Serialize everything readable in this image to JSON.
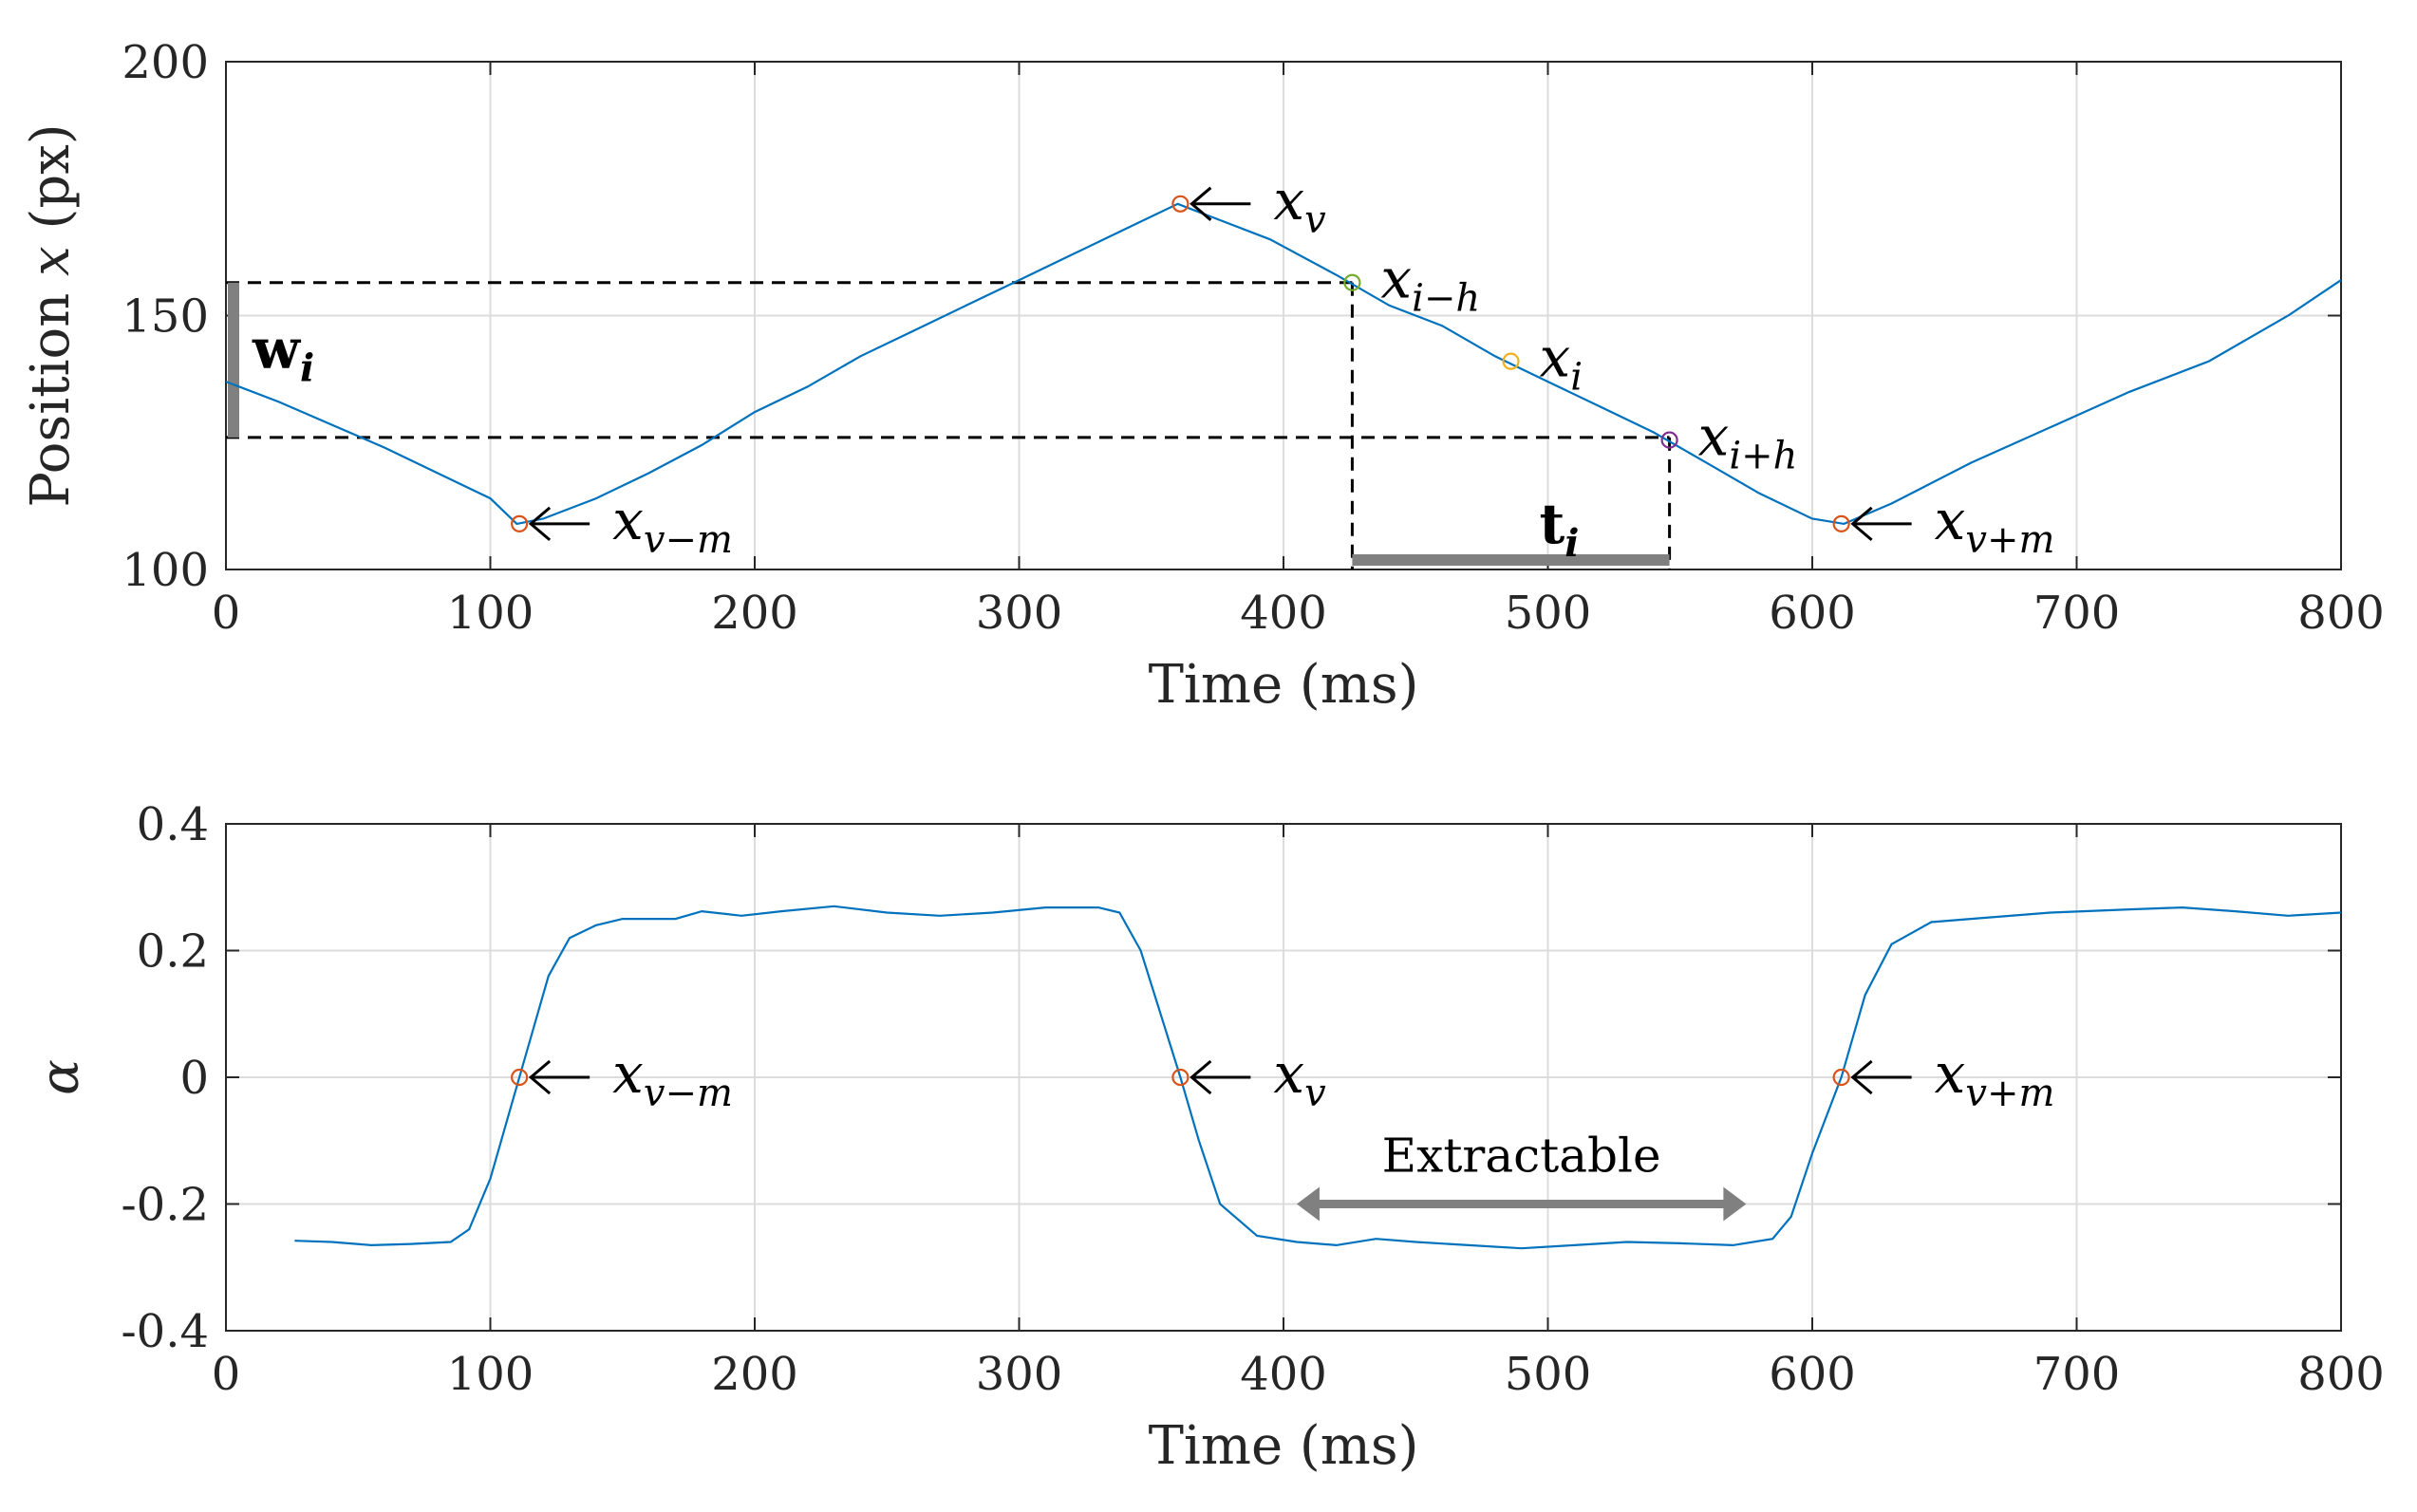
{
  "chart_data": [
    {
      "type": "line",
      "title": "",
      "xlabel": "Time (ms)",
      "ylabel_prefix": "Position ",
      "ylabel_var": "x",
      "ylabel_suffix": " (px)",
      "xlim": [
        0,
        800
      ],
      "ylim": [
        100,
        200
      ],
      "xticks": [
        "0",
        "100",
        "200",
        "300",
        "400",
        "500",
        "600",
        "700",
        "800"
      ],
      "yticks": [
        "100",
        "150",
        "200"
      ],
      "grid": true,
      "series": [
        {
          "name": "position",
          "color": "#0072BD",
          "points": [
            [
              0,
              137
            ],
            [
              20,
              133
            ],
            [
              40,
              128.5
            ],
            [
              60,
              124
            ],
            [
              80,
              119
            ],
            [
              100,
              114
            ],
            [
              110,
              109
            ],
            [
              120,
              110
            ],
            [
              140,
              114
            ],
            [
              160,
              119
            ],
            [
              180,
              124.5
            ],
            [
              200,
              131
            ],
            [
              220,
              136
            ],
            [
              240,
              142
            ],
            [
              260,
              147
            ],
            [
              280,
              152
            ],
            [
              300,
              157
            ],
            [
              320,
              162
            ],
            [
              340,
              167
            ],
            [
              360,
              172
            ],
            [
              375,
              169
            ],
            [
              395,
              165
            ],
            [
              420,
              158
            ],
            [
              440,
              152
            ],
            [
              460,
              148
            ],
            [
              480,
              142
            ],
            [
              500,
              137
            ],
            [
              520,
              132
            ],
            [
              540,
              127
            ],
            [
              560,
              121
            ],
            [
              580,
              115
            ],
            [
              600,
              110
            ],
            [
              612,
              109
            ],
            [
              630,
              113
            ],
            [
              660,
              121
            ],
            [
              690,
              128
            ],
            [
              720,
              135
            ],
            [
              750,
              141
            ],
            [
              780,
              150
            ],
            [
              800,
              157
            ]
          ]
        }
      ],
      "markers": [
        {
          "id": "xv-m",
          "x": 111,
          "y": 109,
          "color": "#D95319",
          "label": "x",
          "sub": "v−m",
          "arrow": true
        },
        {
          "id": "xv",
          "x": 361,
          "y": 172,
          "color": "#D95319",
          "label": "x",
          "sub": "v",
          "arrow": true
        },
        {
          "id": "xi-h",
          "x": 426,
          "y": 156.5,
          "color": "#77AC30",
          "label": "x",
          "sub": "i−h",
          "arrow": false
        },
        {
          "id": "xi",
          "x": 486,
          "y": 141,
          "color": "#EDB120",
          "label": "x",
          "sub": "i",
          "arrow": false
        },
        {
          "id": "xi+h",
          "x": 546,
          "y": 125.5,
          "color": "#7E2F8E",
          "label": "x",
          "sub": "i+h",
          "arrow": false
        },
        {
          "id": "xv+m",
          "x": 611,
          "y": 109,
          "color": "#D95319",
          "label": "x",
          "sub": "v+m",
          "arrow": true
        }
      ],
      "annotations": {
        "w_label": "w",
        "w_sub": "i",
        "w_range": [
          126,
          156.5
        ],
        "t_label": "t",
        "t_sub": "i",
        "t_range": [
          426,
          546
        ]
      }
    },
    {
      "type": "line",
      "title": "",
      "xlabel": "Time (ms)",
      "ylabel": "α",
      "xlim": [
        0,
        800
      ],
      "ylim": [
        -0.4,
        0.4
      ],
      "xticks": [
        "0",
        "100",
        "200",
        "300",
        "400",
        "500",
        "600",
        "700",
        "800"
      ],
      "yticks": [
        "-0.4",
        "-0.2",
        "0",
        "0.2",
        "0.4"
      ],
      "grid": true,
      "series": [
        {
          "name": "alpha",
          "color": "#0072BD",
          "points": [
            [
              26,
              -0.258
            ],
            [
              40,
              -0.26
            ],
            [
              55,
              -0.265
            ],
            [
              70,
              -0.263
            ],
            [
              85,
              -0.26
            ],
            [
              92,
              -0.24
            ],
            [
              100,
              -0.16
            ],
            [
              111,
              0
            ],
            [
              122,
              0.16
            ],
            [
              130,
              0.22
            ],
            [
              140,
              0.24
            ],
            [
              150,
              0.25
            ],
            [
              170,
              0.25
            ],
            [
              180,
              0.262
            ],
            [
              195,
              0.255
            ],
            [
              210,
              0.262
            ],
            [
              230,
              0.27
            ],
            [
              250,
              0.26
            ],
            [
              270,
              0.255
            ],
            [
              290,
              0.26
            ],
            [
              310,
              0.268
            ],
            [
              330,
              0.268
            ],
            [
              338,
              0.26
            ],
            [
              346,
              0.2
            ],
            [
              355,
              0.08
            ],
            [
              361,
              0
            ],
            [
              368,
              -0.1
            ],
            [
              376,
              -0.2
            ],
            [
              390,
              -0.25
            ],
            [
              405,
              -0.26
            ],
            [
              420,
              -0.265
            ],
            [
              435,
              -0.255
            ],
            [
              450,
              -0.26
            ],
            [
              470,
              -0.265
            ],
            [
              490,
              -0.27
            ],
            [
              510,
              -0.265
            ],
            [
              530,
              -0.26
            ],
            [
              550,
              -0.262
            ],
            [
              570,
              -0.265
            ],
            [
              585,
              -0.255
            ],
            [
              592,
              -0.22
            ],
            [
              600,
              -0.12
            ],
            [
              611,
              0
            ],
            [
              620,
              0.13
            ],
            [
              630,
              0.21
            ],
            [
              645,
              0.245
            ],
            [
              660,
              0.25
            ],
            [
              690,
              0.26
            ],
            [
              720,
              0.265
            ],
            [
              740,
              0.268
            ],
            [
              760,
              0.262
            ],
            [
              780,
              0.255
            ],
            [
              800,
              0.26
            ]
          ]
        }
      ],
      "markers": [
        {
          "id": "xv-m",
          "x": 111,
          "y": 0,
          "color": "#D95319",
          "label": "x",
          "sub": "v−m",
          "arrow": true
        },
        {
          "id": "xv",
          "x": 361,
          "y": 0,
          "color": "#D95319",
          "label": "x",
          "sub": "v",
          "arrow": true
        },
        {
          "id": "xv+m",
          "x": 611,
          "y": 0,
          "color": "#D95319",
          "label": "x",
          "sub": "v+m",
          "arrow": true
        }
      ],
      "annotations": {
        "extract_label": "Extractable",
        "extract_range": [
          405,
          575
        ],
        "extract_y": -0.2
      }
    }
  ]
}
